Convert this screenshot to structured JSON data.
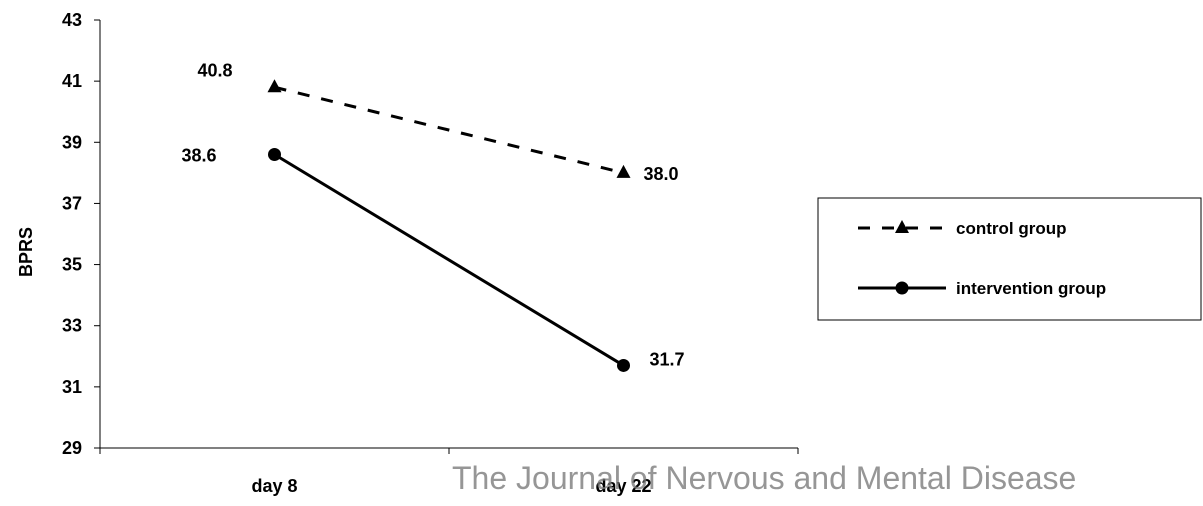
{
  "chart_data": {
    "type": "line",
    "categories": [
      "day 8",
      "day 22"
    ],
    "ylabel": "BPRS",
    "ylim": [
      29,
      43
    ],
    "yticks": [
      29,
      31,
      33,
      35,
      37,
      39,
      41,
      43
    ],
    "grid": false,
    "legend_position": "right",
    "series": [
      {
        "name": "control group",
        "values": [
          40.8,
          38.0
        ],
        "labels": [
          "40.8",
          "38.0"
        ],
        "marker": "triangle",
        "line_style": "dashed",
        "color": "#000000"
      },
      {
        "name": "intervention group",
        "values": [
          38.6,
          31.7
        ],
        "labels": [
          "38.6",
          "31.7"
        ],
        "marker": "circle",
        "line_style": "solid",
        "color": "#000000"
      }
    ]
  },
  "watermark": "The Journal of Nervous and Mental Disease"
}
